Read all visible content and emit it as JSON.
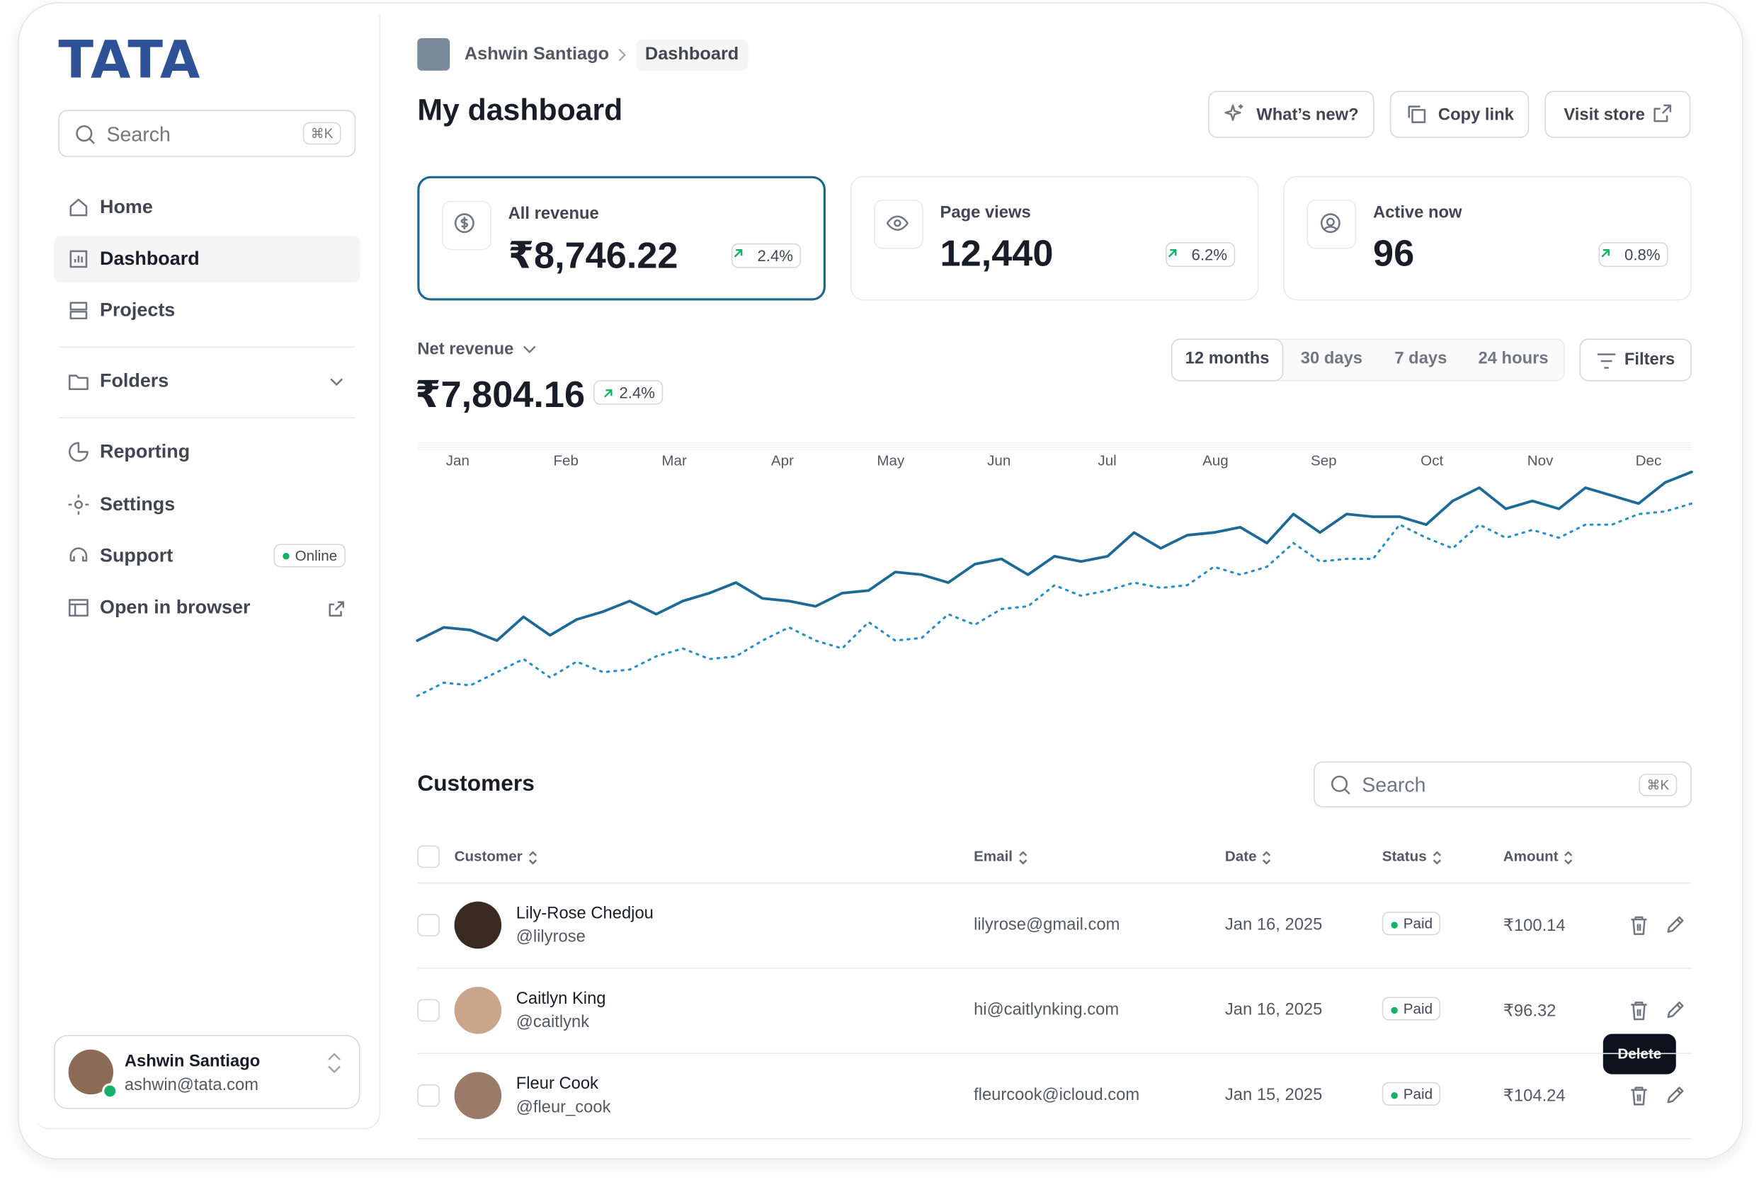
{
  "brand": "TATA",
  "sidebar": {
    "search": {
      "placeholder": "Search",
      "shortcut": "⌘K"
    },
    "nav": [
      "Home",
      "Dashboard",
      "Projects",
      "Folders",
      "Reporting",
      "Settings",
      "Support",
      "Open in browser"
    ],
    "support_badge": "Online",
    "user": {
      "name": "Ashwin Santiago",
      "email": "ashwin@tata.com"
    }
  },
  "header": {
    "breadcrumb": [
      "Ashwin Santiago",
      "Dashboard"
    ],
    "title": "My dashboard",
    "buttons": [
      "What’s new?",
      "Copy link",
      "Visit store"
    ]
  },
  "stats": [
    {
      "label": "All revenue",
      "value": "₹8,746.22",
      "change": "2.4%"
    },
    {
      "label": "Page views",
      "value": "12,440",
      "change": "6.2%"
    },
    {
      "label": "Active now",
      "value": "96",
      "change": "0.8%"
    }
  ],
  "net_revenue": {
    "label": "Net revenue",
    "value": "₹7,804.16",
    "change": "2.4%",
    "ranges": [
      "12 months",
      "30 days",
      "7 days",
      "24 hours"
    ],
    "filters": "Filters"
  },
  "chart_data": {
    "type": "line",
    "xticks": [
      "Jan",
      "Feb",
      "Mar",
      "Apr",
      "May",
      "Jun",
      "Jul",
      "Aug",
      "Sep",
      "Oct",
      "Nov",
      "Dec"
    ],
    "ylim": [
      0,
      100
    ],
    "series": [
      {
        "color": "#1d6a97",
        "style": "solid",
        "values": [
          25,
          30,
          29,
          25,
          34,
          27,
          33,
          36,
          40,
          35,
          40,
          43,
          47,
          41,
          40,
          38,
          43,
          44,
          51,
          50,
          47,
          54,
          56,
          50,
          57,
          55,
          57,
          66,
          60,
          65,
          66,
          68,
          62,
          73,
          66,
          73,
          72,
          72,
          69,
          78,
          83,
          75,
          78,
          75,
          83,
          80,
          77,
          85,
          89
        ]
      },
      {
        "color": "#2a8fc7",
        "style": "dotted",
        "values": [
          4,
          9,
          8,
          13,
          18,
          11,
          17,
          13,
          14,
          19,
          22,
          18,
          19,
          25,
          30,
          25,
          22,
          32,
          25,
          26,
          35,
          31,
          37,
          38,
          46,
          42,
          44,
          47,
          45,
          46,
          53,
          50,
          53,
          62,
          55,
          56,
          56,
          69,
          64,
          60,
          69,
          64,
          67,
          64,
          69,
          69,
          73,
          74,
          77
        ]
      }
    ]
  },
  "customers": {
    "title": "Customers",
    "search": {
      "placeholder": "Search",
      "shortcut": "⌘K"
    },
    "columns": [
      "Customer",
      "Email",
      "Date",
      "Status",
      "Amount"
    ],
    "rows": [
      {
        "name": "Lily-Rose Chedjou",
        "handle": "@lilyrose",
        "email": "lilyrose@gmail.com",
        "date": "Jan 16, 2025",
        "status": "Paid",
        "amount": "₹100.14"
      },
      {
        "name": "Caitlyn King",
        "handle": "@caitlynk",
        "email": "hi@caitlynking.com",
        "date": "Jan 16, 2025",
        "status": "Paid",
        "amount": "₹96.32"
      },
      {
        "name": "Fleur Cook",
        "handle": "@fleur_cook",
        "email": "fleurcook@icloud.com",
        "date": "Jan 15, 2025",
        "status": "Paid",
        "amount": "₹104.24"
      }
    ],
    "tooltip": "Delete"
  }
}
